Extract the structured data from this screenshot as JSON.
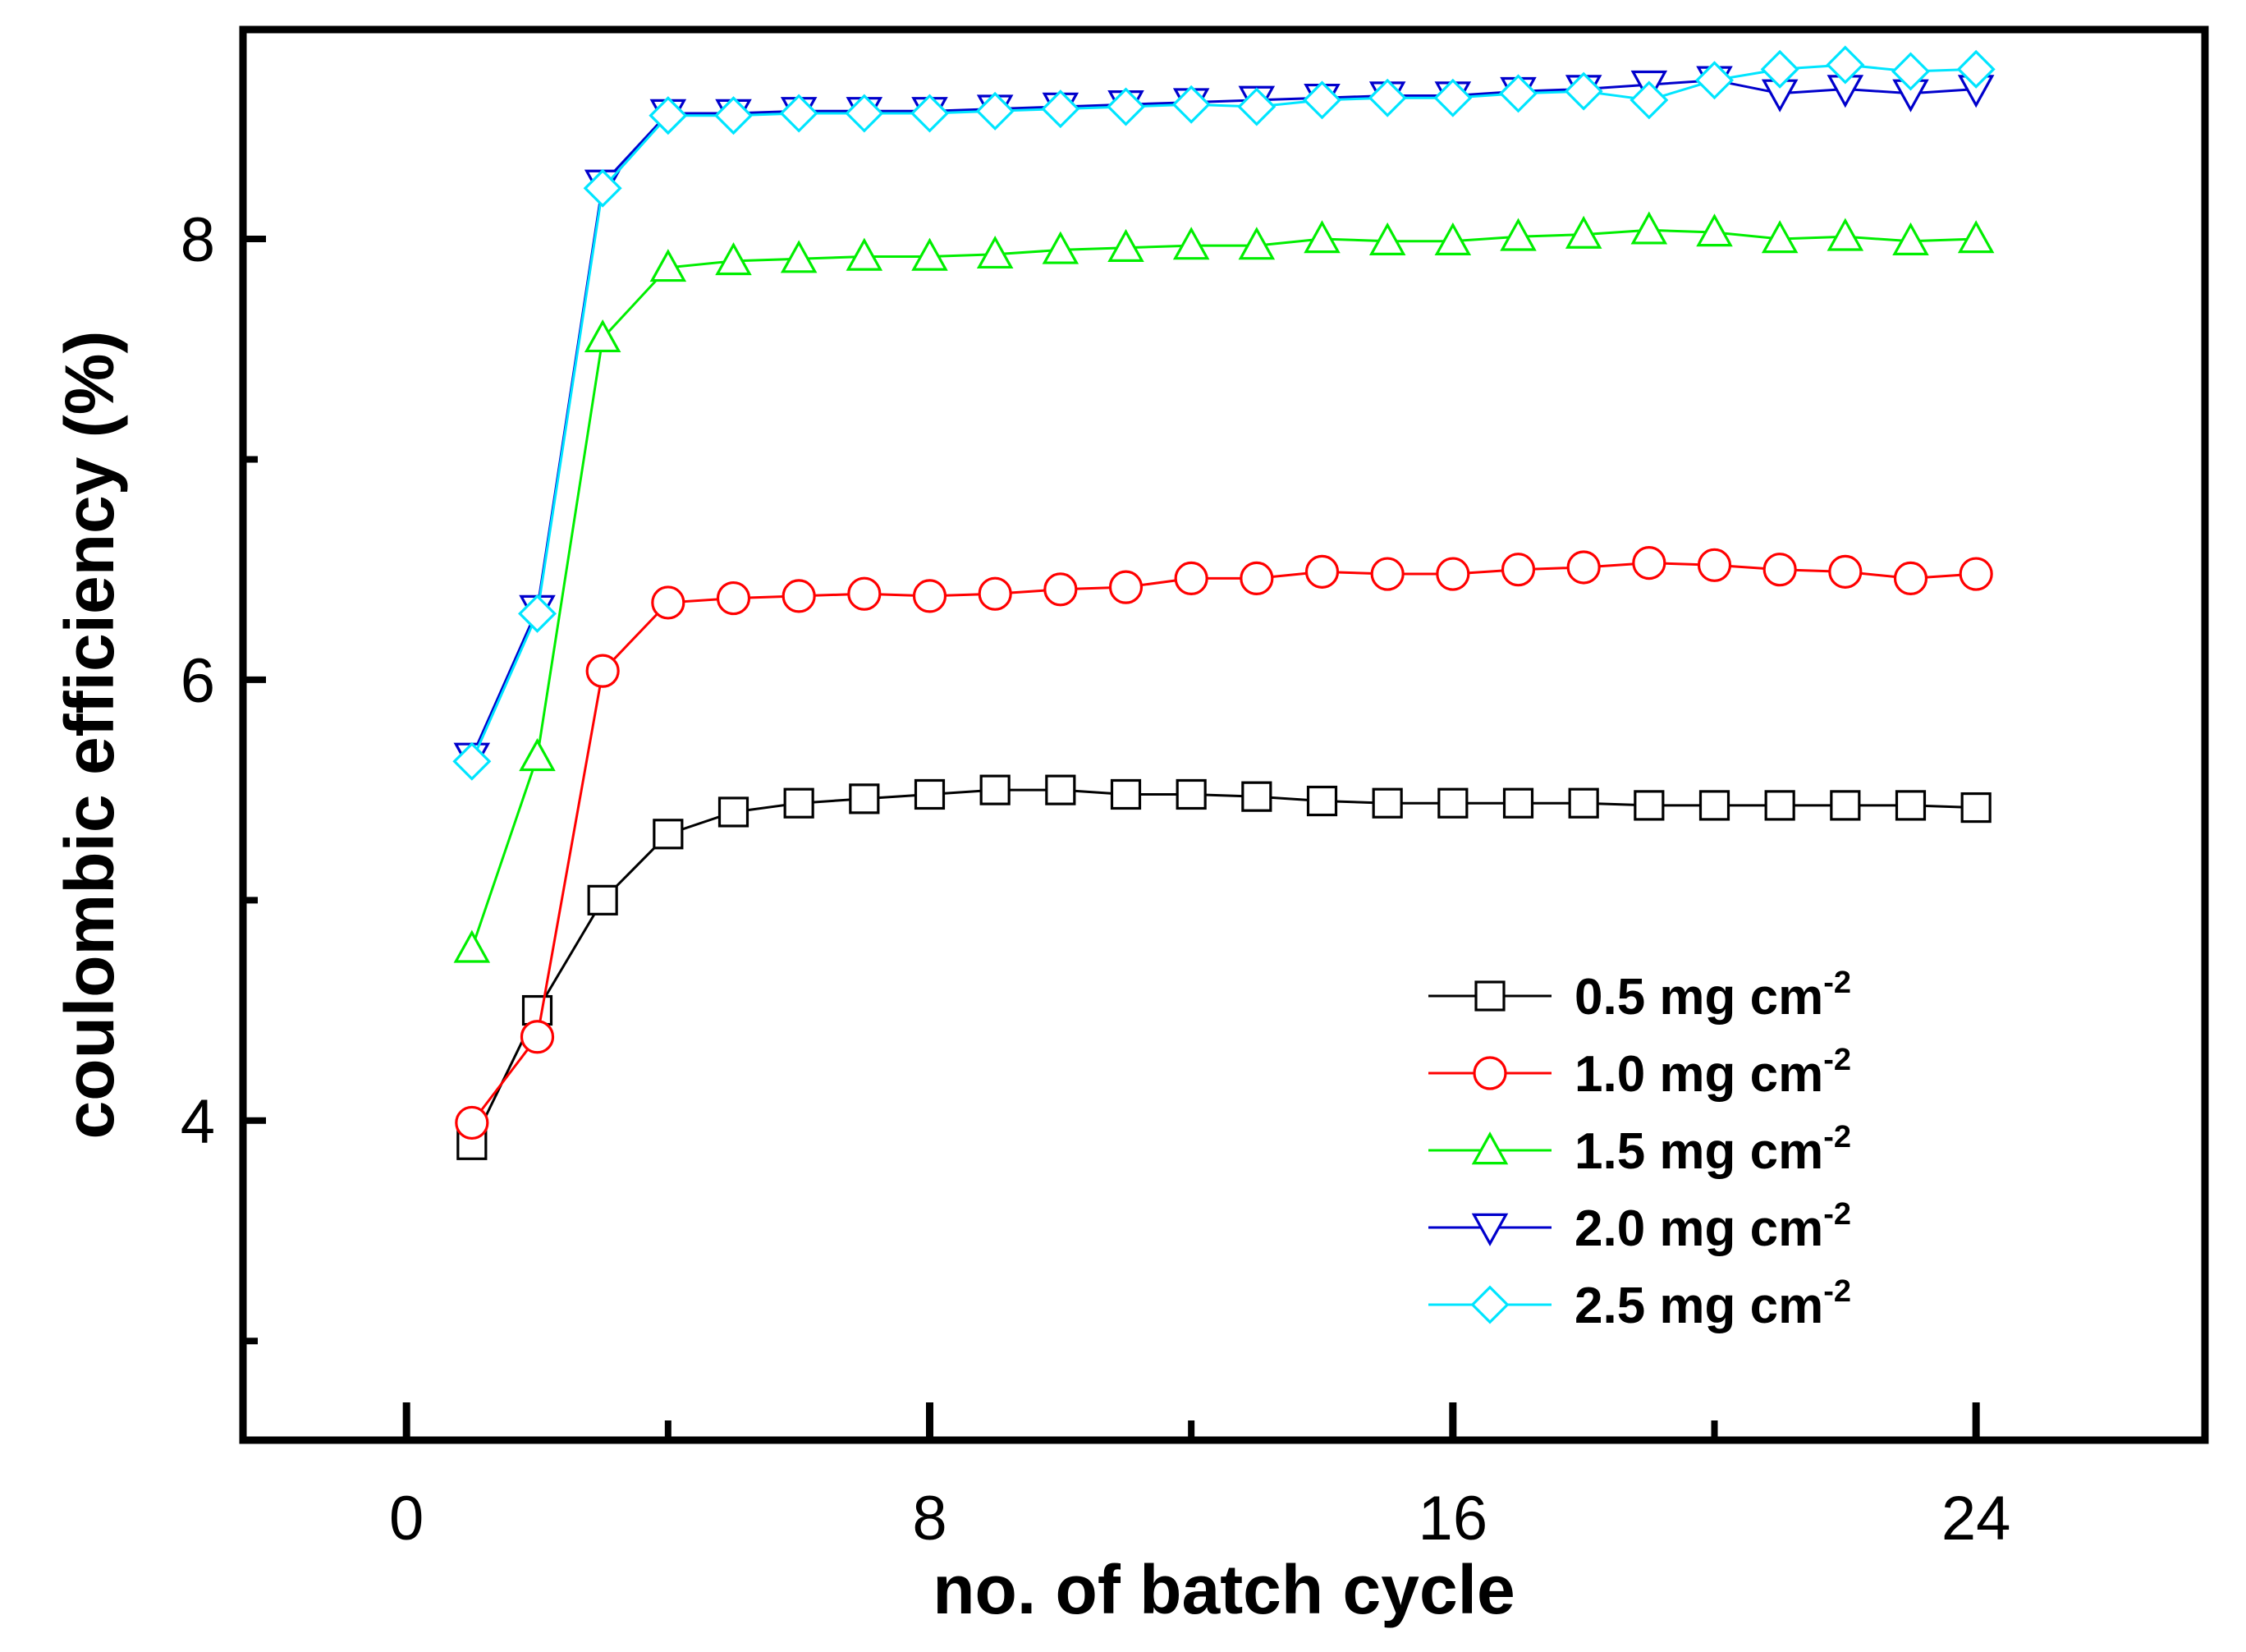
{
  "chart_data": {
    "type": "line",
    "title": "",
    "xlabel": "no. of batch cycle",
    "ylabel": "coulombic efficiency (%)",
    "xlim": [
      -2.5,
      27.5
    ],
    "ylim": [
      2.55,
      8.95
    ],
    "xticks": [
      0,
      8,
      16,
      24
    ],
    "xticks_minor": [
      4,
      12,
      20
    ],
    "yticks": [
      4,
      6,
      8
    ],
    "yticks_minor": [
      3,
      5,
      7
    ],
    "grid": false,
    "legend_position": "bottom-right",
    "x": [
      1,
      2,
      3,
      4,
      5,
      6,
      7,
      8,
      9,
      10,
      11,
      12,
      13,
      14,
      15,
      16,
      17,
      18,
      19,
      20,
      21,
      22,
      23,
      24
    ],
    "series": [
      {
        "name": "0.5 mg cm",
        "unit_sup": "-2",
        "color": "#000000",
        "marker": "square",
        "values": [
          3.89,
          4.5,
          5.0,
          5.3,
          5.4,
          5.44,
          5.46,
          5.48,
          5.5,
          5.5,
          5.48,
          5.48,
          5.47,
          5.45,
          5.44,
          5.44,
          5.44,
          5.44,
          5.43,
          5.43,
          5.43,
          5.43,
          5.43,
          5.42
        ]
      },
      {
        "name": "1.0 mg cm",
        "unit_sup": "-2",
        "color": "#ff0000",
        "marker": "circle",
        "values": [
          3.99,
          4.38,
          6.04,
          6.35,
          6.37,
          6.38,
          6.39,
          6.38,
          6.39,
          6.41,
          6.42,
          6.46,
          6.46,
          6.49,
          6.48,
          6.48,
          6.5,
          6.51,
          6.53,
          6.52,
          6.5,
          6.49,
          6.46,
          6.48
        ]
      },
      {
        "name": "1.5 mg cm",
        "unit_sup": "-2",
        "color": "#00ee00",
        "marker": "triangle-up",
        "values": [
          4.78,
          5.65,
          7.55,
          7.87,
          7.9,
          7.91,
          7.92,
          7.92,
          7.93,
          7.95,
          7.96,
          7.97,
          7.97,
          8.0,
          7.99,
          7.99,
          8.01,
          8.02,
          8.04,
          8.03,
          8.0,
          8.01,
          7.99,
          8.0
        ]
      },
      {
        "name": "2.0 mg cm",
        "unit_sup": "-2",
        "color": "#0000cc",
        "marker": "triangle-down",
        "values": [
          5.65,
          6.32,
          8.25,
          8.57,
          8.57,
          8.58,
          8.58,
          8.58,
          8.59,
          8.6,
          8.61,
          8.62,
          8.63,
          8.64,
          8.65,
          8.65,
          8.67,
          8.68,
          8.7,
          8.72,
          8.66,
          8.68,
          8.66,
          8.68
        ]
      },
      {
        "name": "2.5 mg cm",
        "unit_sup": "-2",
        "color": "#00e5ff",
        "marker": "diamond",
        "values": [
          5.63,
          6.3,
          8.23,
          8.56,
          8.56,
          8.57,
          8.57,
          8.57,
          8.58,
          8.59,
          8.6,
          8.61,
          8.6,
          8.63,
          8.64,
          8.64,
          8.66,
          8.67,
          8.63,
          8.72,
          8.77,
          8.79,
          8.76,
          8.77
        ]
      }
    ]
  }
}
